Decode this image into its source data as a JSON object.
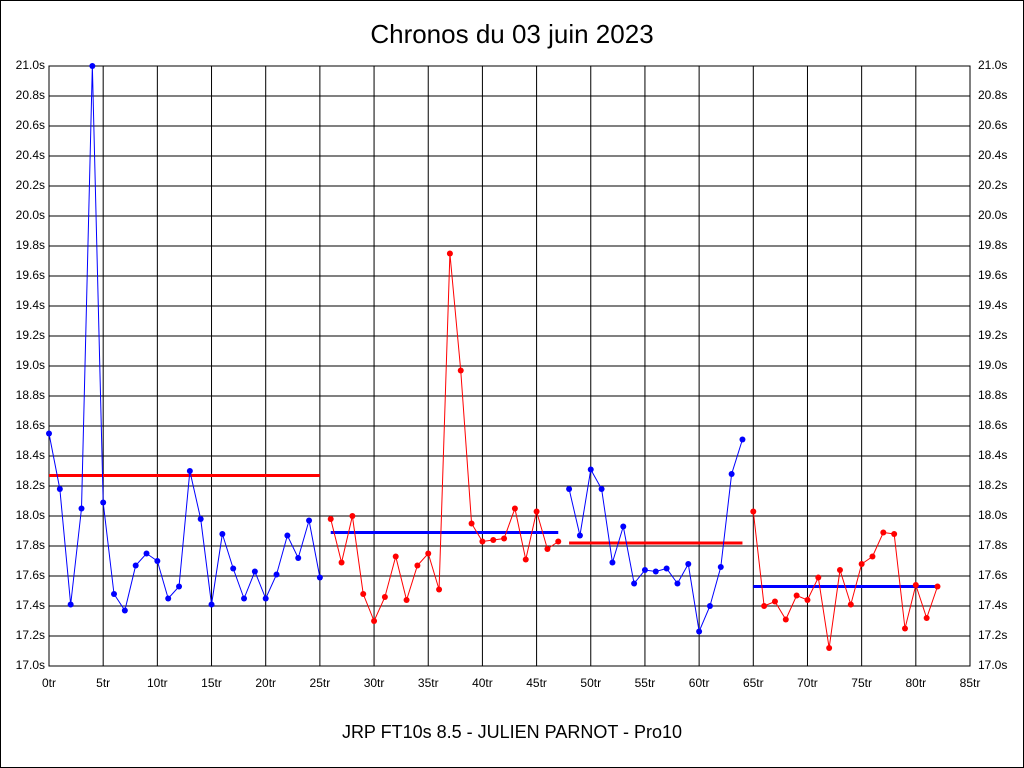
{
  "chart_data": {
    "type": "line",
    "title": "Chronos du 03 juin 2023",
    "footer": "JRP FT10s 8.5 - JULIEN PARNOT - Pro10",
    "xlim": [
      0,
      85
    ],
    "xticks": [
      {
        "value": 0,
        "label": "0tr"
      },
      {
        "value": 5,
        "label": "5tr"
      },
      {
        "value": 10,
        "label": "10tr"
      },
      {
        "value": 15,
        "label": "15tr"
      },
      {
        "value": 20,
        "label": "20tr"
      },
      {
        "value": 25,
        "label": "25tr"
      },
      {
        "value": 30,
        "label": "30tr"
      },
      {
        "value": 35,
        "label": "35tr"
      },
      {
        "value": 40,
        "label": "40tr"
      },
      {
        "value": 45,
        "label": "45tr"
      },
      {
        "value": 50,
        "label": "50tr"
      },
      {
        "value": 55,
        "label": "55tr"
      },
      {
        "value": 60,
        "label": "60tr"
      },
      {
        "value": 65,
        "label": "65tr"
      },
      {
        "value": 70,
        "label": "70tr"
      },
      {
        "value": 75,
        "label": "75tr"
      },
      {
        "value": 80,
        "label": "80tr"
      },
      {
        "value": 85,
        "label": "85tr"
      }
    ],
    "ylim": [
      17.0,
      21.0
    ],
    "yticks": [
      {
        "value": 17.0,
        "label": "17.0s"
      },
      {
        "value": 17.2,
        "label": "17.2s"
      },
      {
        "value": 17.4,
        "label": "17.4s"
      },
      {
        "value": 17.6,
        "label": "17.6s"
      },
      {
        "value": 17.8,
        "label": "17.8s"
      },
      {
        "value": 18.0,
        "label": "18.0s"
      },
      {
        "value": 18.2,
        "label": "18.2s"
      },
      {
        "value": 18.4,
        "label": "18.4s"
      },
      {
        "value": 18.6,
        "label": "18.6s"
      },
      {
        "value": 18.8,
        "label": "18.8s"
      },
      {
        "value": 19.0,
        "label": "19.0s"
      },
      {
        "value": 19.2,
        "label": "19.2s"
      },
      {
        "value": 19.4,
        "label": "19.4s"
      },
      {
        "value": 19.6,
        "label": "19.6s"
      },
      {
        "value": 19.8,
        "label": "19.8s"
      },
      {
        "value": 20.0,
        "label": "20.0s"
      },
      {
        "value": 20.2,
        "label": "20.2s"
      },
      {
        "value": 20.4,
        "label": "20.4s"
      },
      {
        "value": 20.6,
        "label": "20.6s"
      },
      {
        "value": 20.8,
        "label": "20.8s"
      },
      {
        "value": 21.0,
        "label": "21.0s"
      }
    ],
    "grid": true,
    "series": [
      {
        "color": "#0000ff",
        "x": [
          0,
          1,
          2,
          3,
          4,
          5,
          6,
          7,
          8,
          9,
          10,
          11,
          12,
          13,
          14,
          15,
          16,
          17,
          18,
          19,
          20,
          21,
          22,
          23,
          24,
          25
        ],
        "values": [
          18.55,
          18.18,
          17.41,
          18.05,
          21.0,
          18.09,
          17.48,
          17.37,
          17.67,
          17.75,
          17.7,
          17.45,
          17.53,
          18.3,
          17.98,
          17.41,
          17.88,
          17.65,
          17.45,
          17.63,
          17.45,
          17.61,
          17.87,
          17.72,
          17.97,
          17.59
        ]
      },
      {
        "color": "#ff0000",
        "x": [
          26,
          27,
          28,
          29,
          30,
          31,
          32,
          33,
          34,
          35,
          36,
          37,
          38,
          39,
          40,
          41,
          42,
          43,
          44,
          45,
          46,
          47
        ],
        "values": [
          17.98,
          17.69,
          18.0,
          17.48,
          17.3,
          17.46,
          17.73,
          17.44,
          17.67,
          17.75,
          17.51,
          19.75,
          18.97,
          17.95,
          17.83,
          17.84,
          17.85,
          18.05,
          17.71,
          18.03,
          17.78,
          17.83
        ]
      },
      {
        "color": "#0000ff",
        "x": [
          48,
          49,
          50,
          51,
          52,
          53,
          54,
          55,
          56,
          57,
          58,
          59,
          60,
          61,
          62,
          63,
          64
        ],
        "values": [
          18.18,
          17.87,
          18.31,
          18.18,
          17.69,
          17.93,
          17.55,
          17.64,
          17.63,
          17.65,
          17.55,
          17.68,
          17.23,
          17.4,
          17.66,
          18.28,
          18.51
        ]
      },
      {
        "color": "#ff0000",
        "x": [
          65,
          66,
          67,
          68,
          69,
          70,
          71,
          72,
          73,
          74,
          75,
          76,
          77,
          78,
          79,
          80,
          81,
          82
        ],
        "values": [
          18.03,
          17.4,
          17.43,
          17.31,
          17.47,
          17.44,
          17.59,
          17.12,
          17.64,
          17.41,
          17.68,
          17.73,
          17.89,
          17.88,
          17.25,
          17.54,
          17.32,
          17.53
        ]
      }
    ],
    "averages": [
      {
        "color": "#ff0000",
        "x": [
          0,
          25
        ],
        "value": 18.27
      },
      {
        "color": "#0000ff",
        "x": [
          26,
          47
        ],
        "value": 17.89
      },
      {
        "color": "#ff0000",
        "x": [
          48,
          64
        ],
        "value": 17.82
      },
      {
        "color": "#0000ff",
        "x": [
          65,
          82
        ],
        "value": 17.53
      }
    ]
  }
}
